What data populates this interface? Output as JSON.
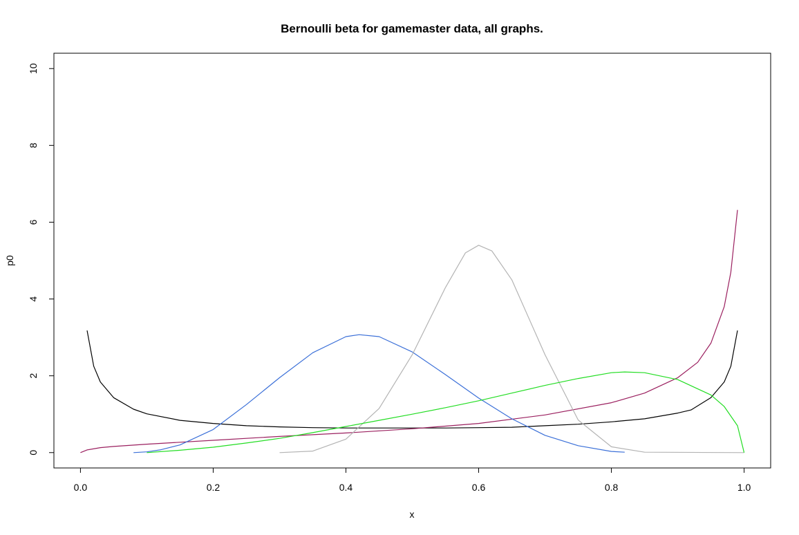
{
  "chart_data": {
    "type": "line",
    "title": "Bernoulli beta for gamemaster data, all graphs.",
    "xlabel": "x",
    "ylabel": "p0",
    "xlim": [
      -0.04,
      1.04
    ],
    "ylim": [
      -0.4,
      10.4
    ],
    "xticks": [
      0.0,
      0.2,
      0.4,
      0.6,
      0.8,
      1.0
    ],
    "xtick_labels": [
      "0.0",
      "0.2",
      "0.4",
      "0.6",
      "0.8",
      "1.0"
    ],
    "yticks": [
      0,
      2,
      4,
      6,
      8,
      10
    ],
    "ytick_labels": [
      "0",
      "2",
      "4",
      "6",
      "8",
      "10"
    ],
    "grid": false,
    "legend": "none",
    "series": [
      {
        "color": "#000000",
        "x": [
          0.01,
          0.02,
          0.03,
          0.05,
          0.08,
          0.1,
          0.15,
          0.2,
          0.25,
          0.3,
          0.35,
          0.4,
          0.45,
          0.5,
          0.55,
          0.6,
          0.65,
          0.7,
          0.75,
          0.8,
          0.85,
          0.9,
          0.92,
          0.95,
          0.97,
          0.98,
          0.99
        ],
        "y": [
          3.18,
          2.25,
          1.84,
          1.43,
          1.13,
          1.01,
          0.84,
          0.76,
          0.7,
          0.67,
          0.65,
          0.64,
          0.64,
          0.64,
          0.64,
          0.65,
          0.66,
          0.7,
          0.74,
          0.8,
          0.88,
          1.03,
          1.11,
          1.43,
          1.84,
          2.25,
          3.18
        ]
      },
      {
        "color": "#9a1e5e",
        "x": [
          0.0,
          0.01,
          0.03,
          0.05,
          0.1,
          0.2,
          0.3,
          0.4,
          0.5,
          0.6,
          0.7,
          0.8,
          0.85,
          0.9,
          0.93,
          0.95,
          0.97,
          0.98,
          0.99
        ],
        "y": [
          0.0,
          0.07,
          0.13,
          0.16,
          0.22,
          0.32,
          0.42,
          0.51,
          0.62,
          0.76,
          0.98,
          1.3,
          1.55,
          1.95,
          2.35,
          2.85,
          3.8,
          4.7,
          6.32
        ]
      },
      {
        "color": "#3a6fd8",
        "x": [
          0.08,
          0.1,
          0.12,
          0.15,
          0.2,
          0.25,
          0.3,
          0.35,
          0.4,
          0.42,
          0.45,
          0.5,
          0.55,
          0.6,
          0.65,
          0.7,
          0.75,
          0.8,
          0.82
        ],
        "y": [
          0.0,
          0.02,
          0.07,
          0.2,
          0.6,
          1.25,
          1.95,
          2.6,
          3.02,
          3.07,
          3.02,
          2.62,
          2.03,
          1.42,
          0.88,
          0.45,
          0.18,
          0.03,
          0.01
        ]
      },
      {
        "color": "#b3b3b3",
        "x": [
          0.3,
          0.35,
          0.4,
          0.45,
          0.5,
          0.55,
          0.58,
          0.6,
          0.62,
          0.65,
          0.7,
          0.75,
          0.8,
          0.85,
          1.0
        ],
        "y": [
          0.0,
          0.04,
          0.35,
          1.15,
          2.55,
          4.3,
          5.2,
          5.4,
          5.25,
          4.5,
          2.55,
          0.85,
          0.15,
          0.01,
          0.0
        ]
      },
      {
        "color": "#22dd22",
        "x": [
          0.1,
          0.15,
          0.2,
          0.25,
          0.3,
          0.35,
          0.4,
          0.45,
          0.5,
          0.55,
          0.6,
          0.65,
          0.7,
          0.75,
          0.8,
          0.82,
          0.85,
          0.9,
          0.95,
          0.97,
          0.99,
          1.0
        ],
        "y": [
          0.0,
          0.06,
          0.14,
          0.25,
          0.37,
          0.52,
          0.68,
          0.84,
          1.0,
          1.17,
          1.35,
          1.55,
          1.75,
          1.93,
          2.08,
          2.1,
          2.08,
          1.9,
          1.5,
          1.2,
          0.7,
          0.0
        ]
      }
    ]
  }
}
